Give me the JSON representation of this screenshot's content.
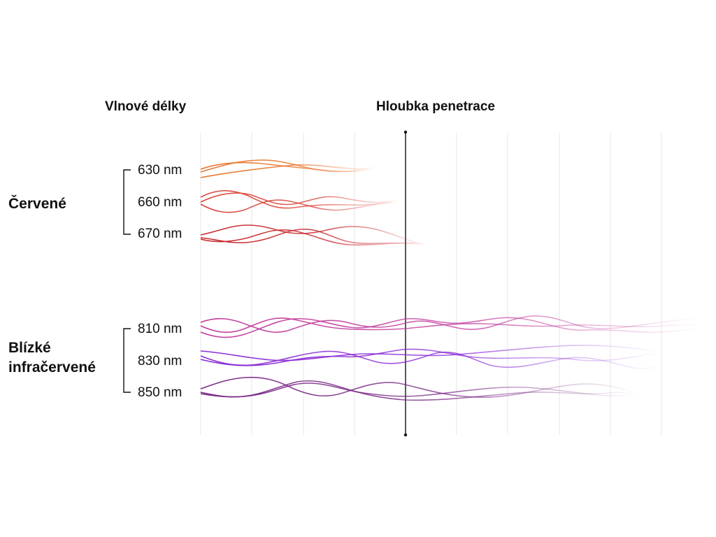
{
  "headers": {
    "wavelengths": "Vlnové délky",
    "penetration_depth": "Hloubka penetrace"
  },
  "groups": [
    {
      "label": "Červené",
      "wavelengths": [
        {
          "label": "630 nm",
          "color": "#E8732A"
        },
        {
          "label": "660 nm",
          "color": "#D94438"
        },
        {
          "label": "670 nm",
          "color": "#C7262C"
        }
      ]
    },
    {
      "label": "Blízké infračervené",
      "wavelengths": [
        {
          "label": "810 nm",
          "color": "#C13A9C"
        },
        {
          "label": "830 nm",
          "color": "#8A2BD6"
        },
        {
          "label": "850 nm",
          "color": "#7A2A86"
        }
      ]
    }
  ],
  "colors": {
    "grid": "#E6E6E6",
    "axis": "#111111",
    "bracket": "#111111"
  }
}
